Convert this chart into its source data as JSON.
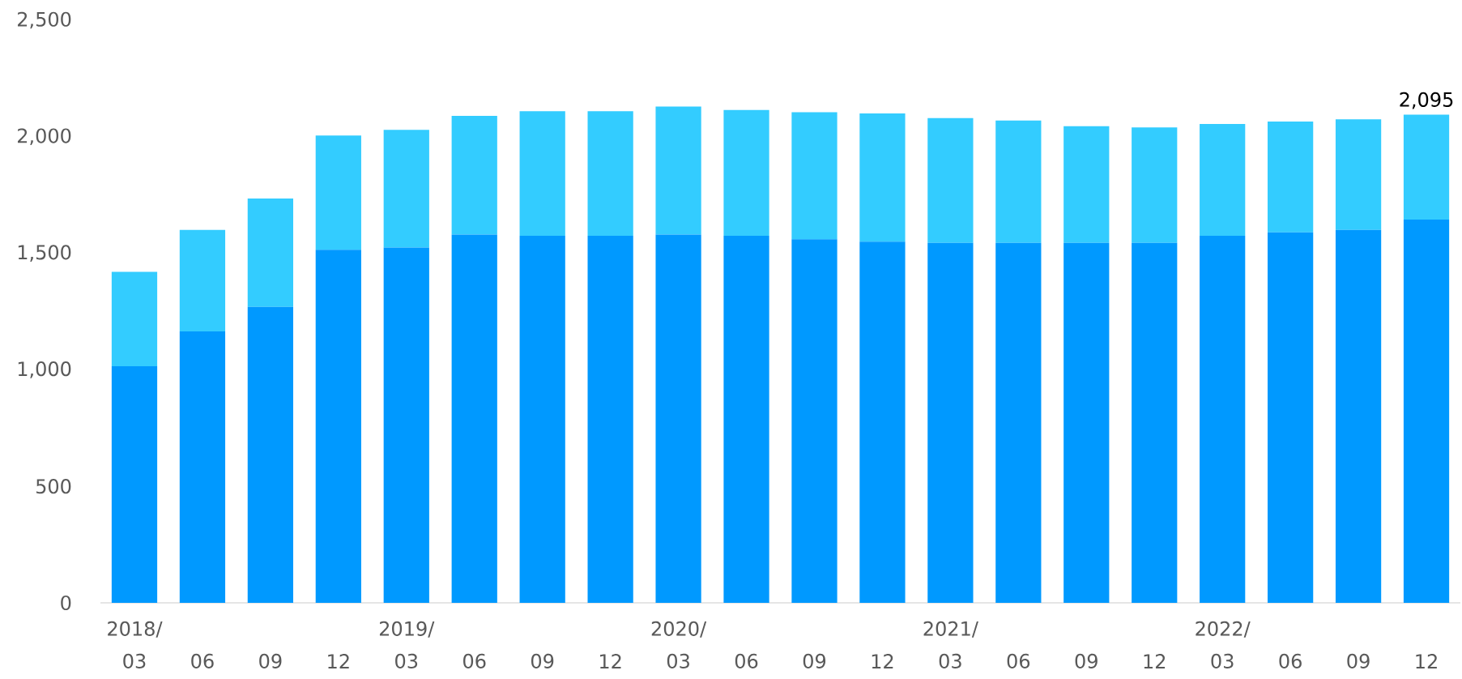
{
  "chart_data": {
    "type": "bar",
    "stacked": true,
    "categories": [
      "2018/03",
      "06",
      "09",
      "12",
      "2019/03",
      "06",
      "09",
      "12",
      "2020/03",
      "06",
      "09",
      "12",
      "2021/03",
      "06",
      "09",
      "12",
      "2022/03",
      "06",
      "09",
      "12"
    ],
    "series": [
      {
        "color": "#0099ff",
        "values": [
          1015,
          1165,
          1270,
          1515,
          1525,
          1580,
          1575,
          1575,
          1580,
          1575,
          1560,
          1550,
          1545,
          1545,
          1545,
          1545,
          1575,
          1590,
          1600,
          1645
        ]
      },
      {
        "color": "#33ccff",
        "values": [
          405,
          435,
          465,
          490,
          505,
          510,
          535,
          535,
          550,
          540,
          545,
          550,
          535,
          525,
          500,
          495,
          480,
          475,
          475,
          450
        ]
      }
    ],
    "ylim": [
      0,
      2500
    ],
    "yticks": [
      0,
      {
        "value": 500,
        "label": "500"
      },
      {
        "value": 1000,
        "label": "1,000"
      },
      {
        "value": 1500,
        "label": "1,500"
      },
      {
        "value": 2000,
        "label": "2,000"
      },
      {
        "value": 2500,
        "label": "2,500"
      }
    ],
    "totals": [
      null,
      null,
      null,
      null,
      null,
      null,
      null,
      null,
      null,
      null,
      null,
      null,
      null,
      null,
      null,
      null,
      null,
      null,
      null,
      "2,095"
    ],
    "grid": false
  }
}
